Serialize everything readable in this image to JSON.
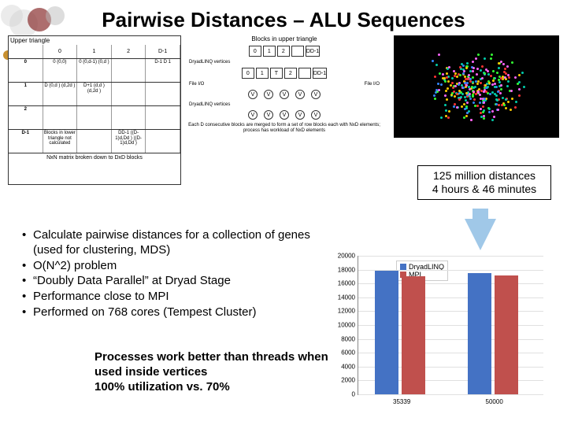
{
  "title": "Pairwise Distances – ALU Sequences",
  "matrix": {
    "header_label": "Upper triangle",
    "cols": [
      "",
      "0",
      "1",
      "2",
      "D-1"
    ],
    "rows": [
      {
        "h": "0",
        "cells": [
          "0\n(0,0)",
          "0\n(0,d-1)\n(0,d )",
          "",
          "D-1\nD 1"
        ]
      },
      {
        "h": "1",
        "cells": [
          "D\n(0,d )\n(d,2d )",
          "D+1\n(d,d )\n(d,2d )",
          "",
          ""
        ]
      },
      {
        "h": "2",
        "cells": [
          "",
          "",
          "",
          ""
        ]
      },
      {
        "h": "D-1",
        "cells": [
          "Blocks in lower\ntriangle not calculated",
          "",
          "DD-1\n((D-1)d,Dd )\n((D-1)d,Dd )",
          ""
        ]
      }
    ],
    "caption": "NxN matrix broken down to DxD blocks"
  },
  "blocks": {
    "title": "Blocks in upper triangle",
    "row1": [
      "0",
      "1",
      "2",
      "",
      "DD-1"
    ],
    "label1": "DryadLINQ\nvertices",
    "row2": [
      "0",
      "1",
      "T",
      "2",
      "",
      "DD-1"
    ],
    "label2": "File I/O",
    "label3": "DryadLINQ\nvertices",
    "caption": "Each D consecutive blocks are merged to form a set of row blocks\neach with NxD elements; process has workload of NxD elements"
  },
  "callout": {
    "line1": "125 million distances",
    "line2": "4 hours & 46 minutes"
  },
  "bullets": [
    "Calculate pairwise distances for a collection of genes (used for clustering, MDS)",
    "O(N^2) problem",
    "“Doubly Data Parallel” at Dryad Stage",
    "Performance close to MPI",
    "Performed on 768 cores (Tempest Cluster)"
  ],
  "note": {
    "line1": "Processes work better than threads when used inside vertices",
    "line2": "100% utilization vs. 70%"
  },
  "chart": {
    "type": "bar",
    "ymin": 0,
    "ymax": 20000,
    "ystep": 2000,
    "categories": [
      "35339",
      "50000"
    ],
    "series": [
      {
        "name": "DryadLINQ",
        "color": "#4472c4",
        "values": [
          17800,
          17500
        ]
      },
      {
        "name": "MPI",
        "color": "#c0504d",
        "values": [
          17000,
          17200
        ]
      }
    ],
    "background": "#ffffff",
    "grid_color": "#e0e0e0"
  },
  "scatter": {
    "colors": [
      "#ff3333",
      "#33ff33",
      "#ffcc00",
      "#3388ff",
      "#ff66ff",
      "#00ccaa"
    ]
  }
}
